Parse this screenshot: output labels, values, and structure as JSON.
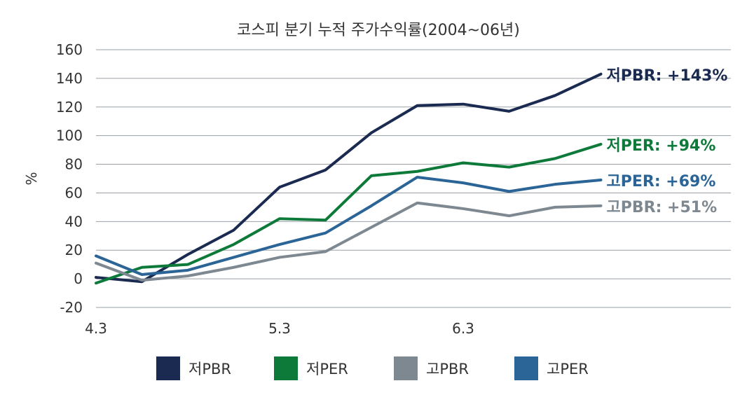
{
  "chart_data": {
    "type": "line",
    "title": "코스피 분기 누적 주가수익률(2004~06년)",
    "xlabel": "",
    "ylabel": "%",
    "x": [
      0,
      1,
      2,
      3,
      4,
      5,
      6,
      7,
      8,
      9,
      10,
      11
    ],
    "x_ticks": [
      {
        "x": 0,
        "label": "4.3"
      },
      {
        "x": 4,
        "label": "5.3"
      },
      {
        "x": 8,
        "label": "6.3"
      }
    ],
    "ylim": [
      -20,
      160
    ],
    "y_ticks": [
      -20,
      0,
      20,
      40,
      60,
      80,
      100,
      120,
      140,
      160
    ],
    "grid": true,
    "legend_position": "bottom",
    "series": [
      {
        "name": "저PBR",
        "color": "#1a2a50",
        "end_label": "저PBR: +143%",
        "values": [
          1,
          -2,
          17,
          34,
          64,
          76,
          102,
          121,
          122,
          117,
          128,
          143
        ]
      },
      {
        "name": "저PER",
        "color": "#0e7a3a",
        "end_label": "저PER: +94%",
        "values": [
          -3,
          8,
          10,
          24,
          42,
          41,
          72,
          75,
          81,
          78,
          84,
          94
        ]
      },
      {
        "name": "고PBR",
        "color": "#7d8891",
        "end_label": "고PBR: +51%",
        "values": [
          11,
          -1,
          2,
          8,
          15,
          19,
          36,
          53,
          49,
          44,
          50,
          51
        ]
      },
      {
        "name": "고PER",
        "color": "#2b6496",
        "end_label": "고PER: +69%",
        "values": [
          16,
          3,
          6,
          15,
          24,
          32,
          51,
          71,
          67,
          61,
          66,
          69
        ]
      }
    ]
  }
}
